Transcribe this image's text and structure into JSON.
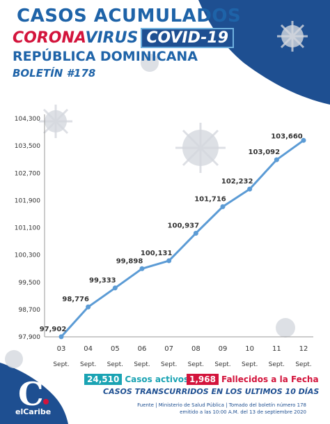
{
  "header": {
    "title_line1": "CASOS ACUMULADOS",
    "corona": "CORONA",
    "virus": "VIRUS",
    "covid": "COVID-19",
    "country": "REPÚBLICA DOMINICANA",
    "bulletin": "BOLETÍN #178"
  },
  "chart_data": {
    "type": "line",
    "categories": [
      "03",
      "04",
      "05",
      "06",
      "07",
      "08",
      "09",
      "10",
      "11",
      "12"
    ],
    "category_sub": "Sept.",
    "values": [
      97902,
      98776,
      99333,
      99898,
      100131,
      100937,
      101716,
      102232,
      103092,
      103660
    ],
    "value_labels": [
      "97,902",
      "98,776",
      "99,333",
      "99,898",
      "100,131",
      "100,937",
      "101,716",
      "102,232",
      "103,092",
      "103,660"
    ],
    "yticks": [
      97900,
      98700,
      99500,
      100300,
      101100,
      101900,
      102700,
      103500,
      104300
    ],
    "ytick_labels": [
      "97,900",
      "98,700",
      "99,500",
      "100,300",
      "101,100",
      "101,900",
      "102,700",
      "103,500",
      "104,300"
    ],
    "ylim": [
      97900,
      104300
    ],
    "color": "#5b9bd5",
    "grid": false
  },
  "legend": {
    "active_value": "24,510",
    "active_label": "Casos activos",
    "deaths_value": "1,968",
    "deaths_label": "Fallecidos a la Fecha"
  },
  "subtitle": "CASOS TRANSCURRIDOS EN LOS ULTIMOS 10 DÍAS",
  "source": "Fuente | Ministerio de Salud Pública | Tomado del boletín número 178 emitido a las 10:00 A.M. del 13 de septiembre 2020",
  "logo": {
    "text": "elCaribe",
    "letter": "C"
  },
  "colors": {
    "primary": "#1e63a8",
    "accent": "#d3143c",
    "dark": "#1e4f91"
  }
}
